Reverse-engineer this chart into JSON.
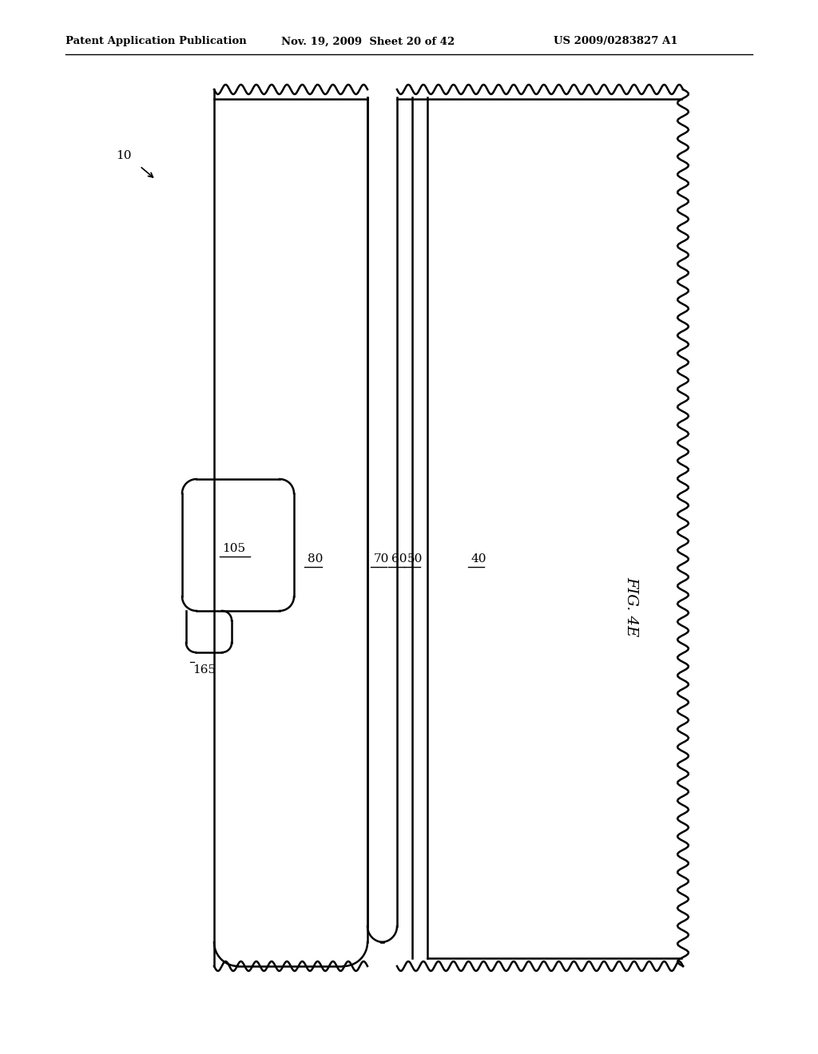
{
  "title": "FIG. 4E",
  "header_left": "Patent Application Publication",
  "header_center": "Nov. 19, 2009  Sheet 20 of 42",
  "header_right": "US 2009/0283827 A1",
  "bg_color": "#ffffff",
  "line_color": "#000000",
  "label_10": "10",
  "label_105": "105",
  "label_165": "165",
  "label_80": "80",
  "label_70": "70",
  "label_60": "60",
  "label_50": "50",
  "label_40": "40",
  "fig_label": "FIG. 4E"
}
